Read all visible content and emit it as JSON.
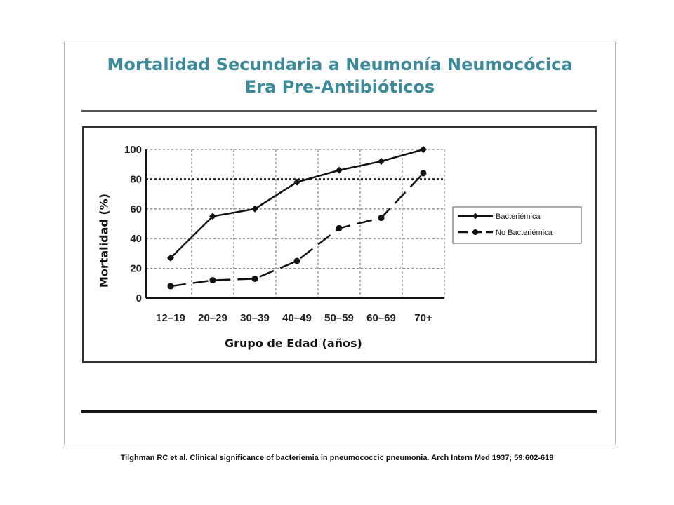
{
  "slide": {
    "title_line1": "Mortalidad Secundaria a Neumonía Neumocócica",
    "title_line2": "Era Pre-Antibióticos",
    "citation": "Tilghman RC et al. Clinical significance of bacteriemia in pneumococcic pneumonia. Arch Intern Med 1937; 59:602-619"
  },
  "colors": {
    "title": "#3a8a9b",
    "lines": "#111111",
    "grid": "#888888"
  },
  "chart_data": {
    "type": "line",
    "title": "",
    "xlabel": "Grupo de Edad (años)",
    "ylabel": "Mortalidad (%)",
    "ylim": [
      0,
      100
    ],
    "yticks": [
      "0",
      "20",
      "40",
      "60",
      "80",
      "100"
    ],
    "categories": [
      "12–19",
      "20–29",
      "30–39",
      "40–49",
      "50–59",
      "60–69",
      "70+"
    ],
    "grid": true,
    "reference_line": 80,
    "legend_position": "right",
    "series": [
      {
        "name": "Bacteriémica",
        "style": "solid",
        "marker": "diamond",
        "values": [
          27,
          55,
          60,
          78,
          86,
          92,
          100
        ]
      },
      {
        "name": "No Bacteriémica",
        "style": "dashed",
        "marker": "circle",
        "values": [
          8,
          12,
          13,
          25,
          47,
          54,
          84
        ]
      }
    ]
  }
}
